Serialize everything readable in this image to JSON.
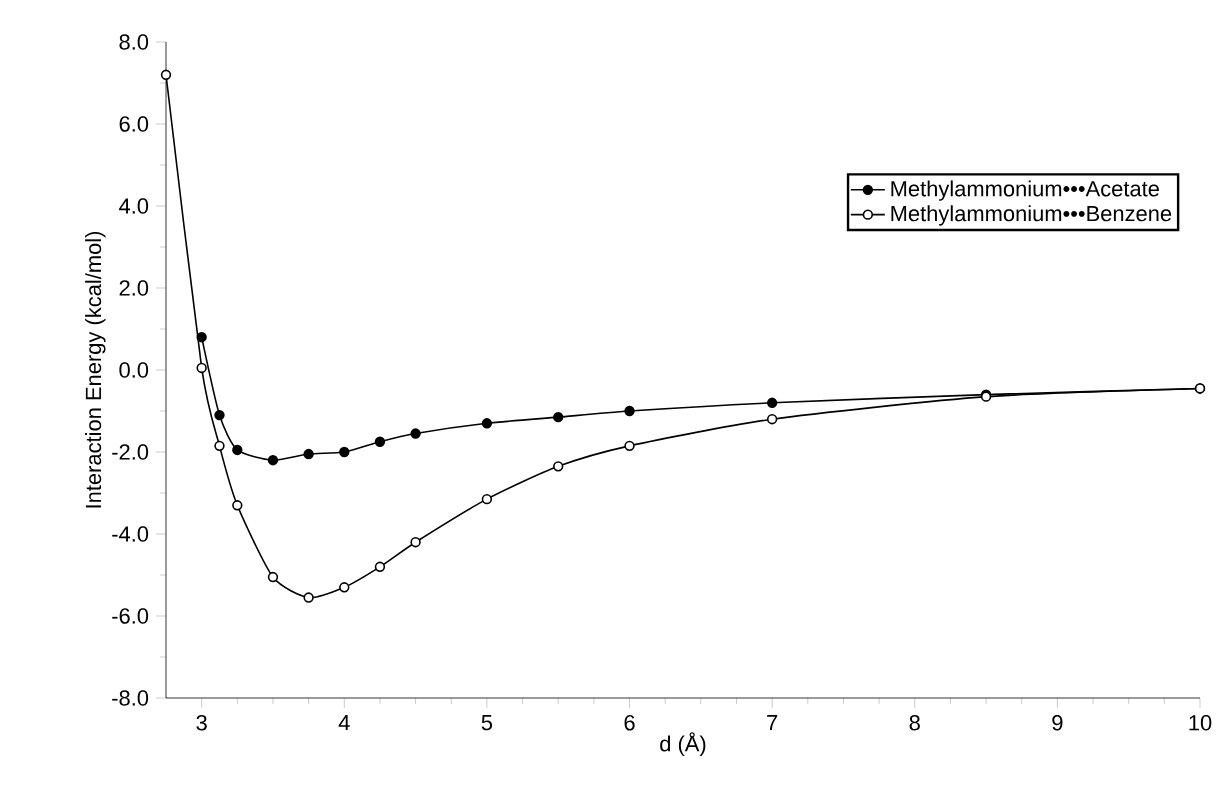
{
  "chart_data": {
    "type": "line",
    "xlabel": "d (Å)",
    "ylabel": "Interaction Energy (kcal/mol)",
    "xlim": [
      2.75,
      10
    ],
    "ylim": [
      -8,
      8
    ],
    "xticks": [
      3,
      4,
      5,
      6,
      7,
      8,
      9,
      10
    ],
    "yticks": [
      {
        "value": -8,
        "label": "-8.0"
      },
      {
        "value": -6,
        "label": "-6.0"
      },
      {
        "value": -4,
        "label": "-4.0"
      },
      {
        "value": -2,
        "label": "-2.0"
      },
      {
        "value": 0,
        "label": "0.0"
      },
      {
        "value": 2,
        "label": "2.0"
      },
      {
        "value": 4,
        "label": "4.0"
      },
      {
        "value": 6,
        "label": "6.0"
      },
      {
        "value": 8,
        "label": "8.0"
      }
    ],
    "legend": "top right",
    "marker": "circle",
    "grid": false,
    "series": [
      {
        "name": "Methylammonium•••Acetate",
        "color": "#000000",
        "x": [
          3.0,
          3.125,
          3.25,
          3.5,
          3.75,
          4.0,
          4.25,
          4.5,
          5.0,
          5.5,
          6.0,
          7.0,
          8.5,
          10.0
        ],
        "values": [
          0.8,
          -1.1,
          -1.95,
          -2.2,
          -2.05,
          -2.0,
          -1.75,
          -1.55,
          -1.3,
          -1.15,
          -1.0,
          -0.8,
          -0.6,
          -0.45
        ]
      },
      {
        "name": "Methylammonium•••Benzene",
        "color": "#000000",
        "x": [
          2.75,
          3.0,
          3.125,
          3.25,
          3.5,
          3.75,
          4.0,
          4.25,
          4.5,
          5.0,
          5.5,
          6.0,
          7.0,
          8.5,
          10.0
        ],
        "values": [
          7.2,
          0.05,
          -1.85,
          -3.3,
          -5.05,
          -5.55,
          -5.3,
          -4.8,
          -4.2,
          -3.15,
          -2.35,
          -1.85,
          -1.2,
          -0.65,
          -0.45
        ]
      }
    ]
  }
}
